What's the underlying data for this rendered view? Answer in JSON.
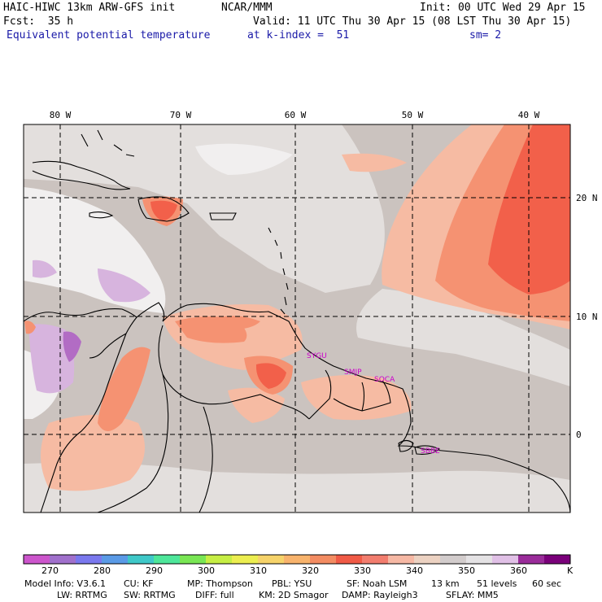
{
  "header": {
    "model_title": "HAIC-HIWC 13km ARW-GFS init",
    "center": "NCAR/MMM",
    "init_time": "Init: 00 UTC Wed 29 Apr 15",
    "forecast": "Fcst:  35 h",
    "valid_time": "Valid: 11 UTC Thu 30 Apr 15 (08 LST Thu 30 Apr 15)",
    "field_name": "Equivalent potential temperature",
    "k_index": "at k-index =  51",
    "smoothing": "sm= 2"
  },
  "map": {
    "lon_labels": [
      "80 W",
      "70 W",
      "60 W",
      "50 W",
      "40 W"
    ],
    "lat_labels": [
      "20 N",
      "10 N",
      "0"
    ],
    "stations": [
      "SYGU",
      "SMJP",
      "SOCA",
      "SBBE"
    ],
    "colors": {
      "background": "#cbc3bf",
      "light_gray": "#e3dfdd",
      "white_area": "#f1efef",
      "peach": "#f6bba3",
      "salmon": "#f59272",
      "red": "#f2604a",
      "lilac": "#d7b4de",
      "purple": "#b26cc4",
      "station_label": "#cc00cc"
    }
  },
  "colorbar": {
    "colors": [
      "#cc55cc",
      "#a070cc",
      "#7a78ee",
      "#5a9ae6",
      "#3fc8c8",
      "#4ee69a",
      "#79e654",
      "#c6ee44",
      "#ecee50",
      "#f6d36a",
      "#f8b36c",
      "#f38c62",
      "#f05a46",
      "#f27d6e",
      "#f6b8a4",
      "#ecd2c2",
      "#d2cccc",
      "#e4e2e4",
      "#e0c0e6",
      "#9a2c9a",
      "#7a007a"
    ],
    "ticks": [
      "270",
      "280",
      "290",
      "300",
      "310",
      "320",
      "330",
      "340",
      "350",
      "360"
    ],
    "unit": "K"
  },
  "footer": {
    "line1": {
      "model_info": "Model Info: V3.6.1",
      "cu": "CU: KF",
      "mp": "MP: Thompson",
      "pbl": "PBL: YSU",
      "sf": "SF: Noah LSM",
      "res": "13 km",
      "levels": "51 levels",
      "dt": "60 sec"
    },
    "line2": {
      "lw": "LW: RRTMG",
      "sw": "SW: RRTMG",
      "diff": "DIFF: full",
      "km": "KM: 2D Smagor",
      "damp": "DAMP: Rayleigh3",
      "sflay": "SFLAY: MM5"
    }
  }
}
